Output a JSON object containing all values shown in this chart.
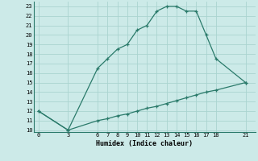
{
  "xlabel": "Humidex (Indice chaleur)",
  "bg_color": "#cceae8",
  "grid_color": "#aad4d0",
  "line_color": "#2a7a6a",
  "curve1_x": [
    0,
    3,
    6,
    7,
    8,
    9,
    10,
    11,
    12,
    13,
    14,
    15,
    16,
    17,
    18,
    21
  ],
  "curve1_y": [
    12,
    10,
    16.5,
    17.5,
    18.5,
    19,
    20.5,
    21,
    22.5,
    23,
    23,
    22.5,
    22.5,
    20,
    17.5,
    15
  ],
  "curve2_x": [
    0,
    3,
    6,
    7,
    8,
    9,
    10,
    11,
    12,
    13,
    14,
    15,
    16,
    17,
    18,
    21
  ],
  "curve2_y": [
    12,
    10,
    11.0,
    11.2,
    11.5,
    11.7,
    12.0,
    12.3,
    12.5,
    12.8,
    13.1,
    13.4,
    13.7,
    14.0,
    14.2,
    15.0
  ],
  "xlim": [
    -0.5,
    22
  ],
  "ylim": [
    9.8,
    23.5
  ],
  "yticks": [
    10,
    11,
    12,
    13,
    14,
    15,
    16,
    17,
    18,
    19,
    20,
    21,
    22,
    23
  ],
  "xticks": [
    0,
    3,
    6,
    7,
    8,
    9,
    10,
    11,
    12,
    13,
    14,
    15,
    16,
    17,
    18,
    21
  ]
}
